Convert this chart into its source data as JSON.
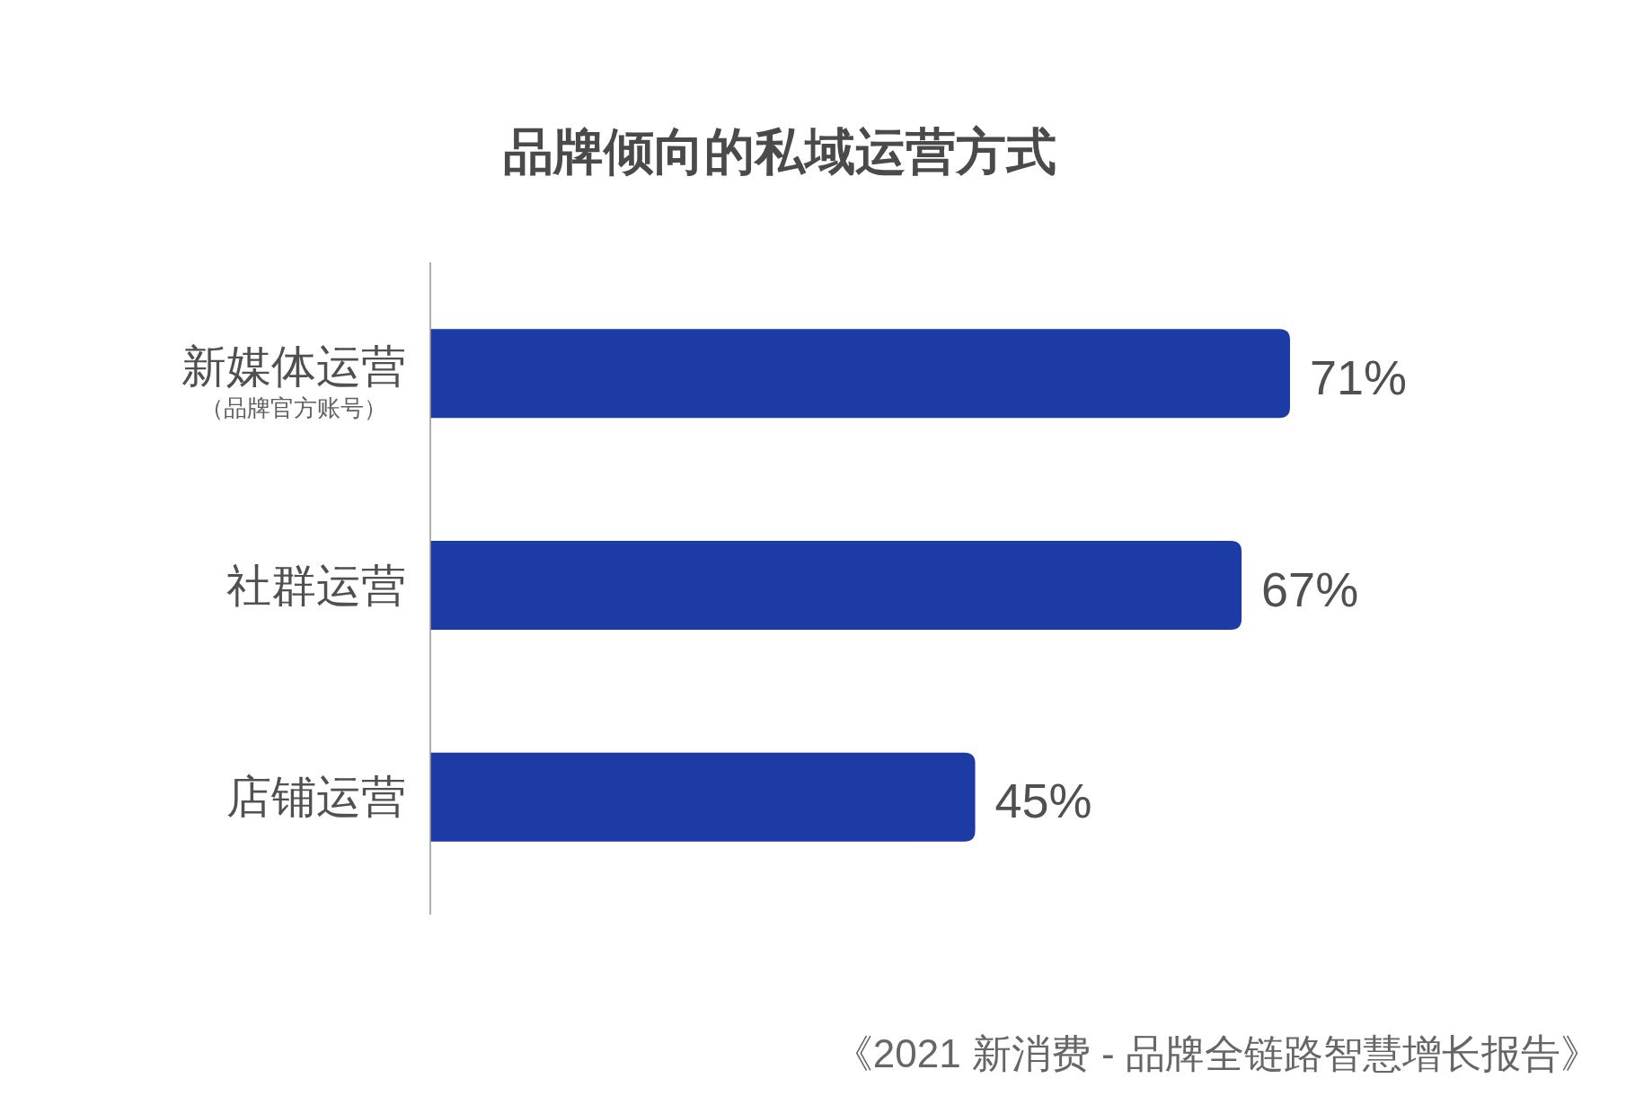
{
  "chart_data": {
    "type": "bar",
    "orientation": "horizontal",
    "title": "品牌倾向的私域运营方式",
    "categories": [
      "新媒体运营（品牌官方账号）",
      "社群运营",
      "店铺运营"
    ],
    "values": [
      71,
      67,
      45
    ],
    "color": "#1c3ba5",
    "value_labels": [
      "71%",
      "67%",
      "45%"
    ],
    "tick_labels": "y",
    "annotations": [
      "《2021 新消费 - 品牌全链路智慧增长报告》"
    ]
  }
}
